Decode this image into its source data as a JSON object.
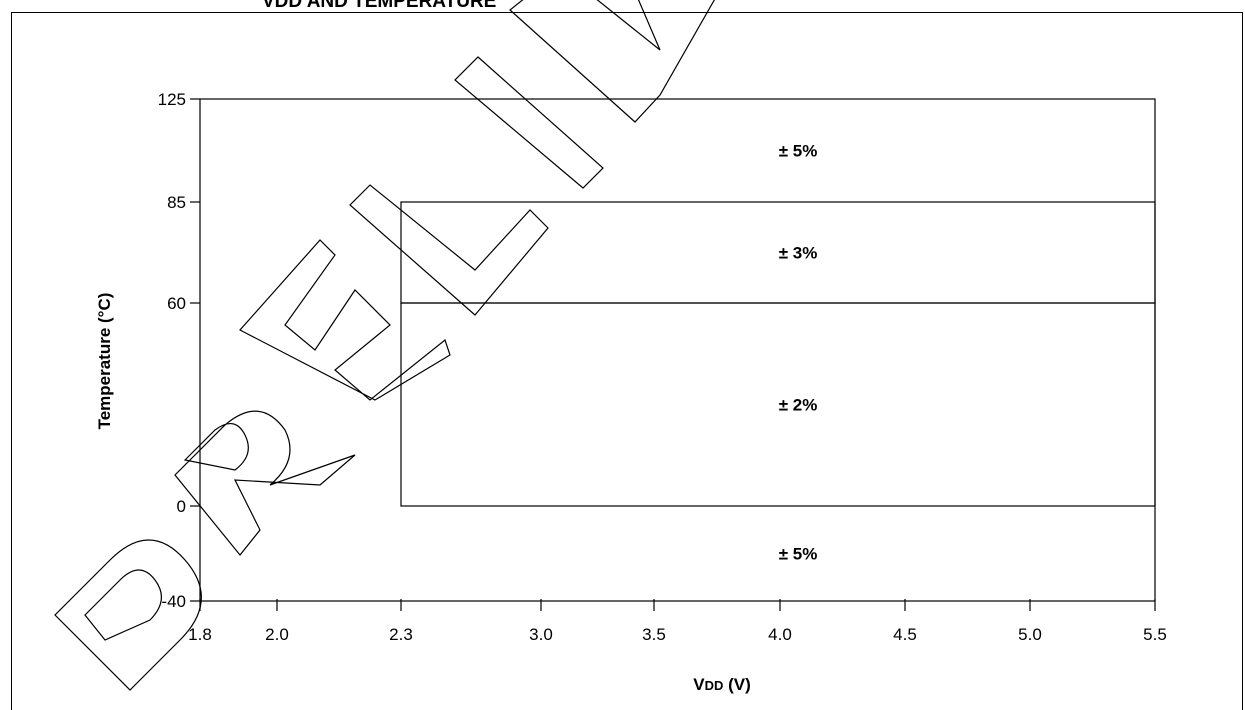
{
  "caption": "VDD AND TEMPERATURE",
  "watermark": "PRELIMINARY",
  "chart_data": {
    "type": "region",
    "xlabel": {
      "main": "V",
      "sub": "DD",
      "unit": " (V)"
    },
    "ylabel": "Temperature (°C)",
    "x_ticks": [
      "1.8",
      "2.0",
      "2.3",
      "3.0",
      "3.5",
      "4.0",
      "4.5",
      "5.0",
      "5.5"
    ],
    "y_ticks": [
      "125",
      "85",
      "60",
      "0",
      "-40"
    ],
    "xlim": [
      1.8,
      5.5
    ],
    "ylim": [
      -40,
      125
    ],
    "regions": [
      {
        "label": "± 5%",
        "x": [
          1.8,
          5.5
        ],
        "y": [
          85,
          125
        ]
      },
      {
        "label": "± 3%",
        "x": [
          2.3,
          5.5
        ],
        "y": [
          60,
          85
        ]
      },
      {
        "label": "± 2%",
        "x": [
          2.3,
          5.5
        ],
        "y": [
          0,
          60
        ]
      },
      {
        "label": "± 5%",
        "x": [
          1.8,
          5.5
        ],
        "y": [
          -40,
          0
        ]
      }
    ]
  }
}
